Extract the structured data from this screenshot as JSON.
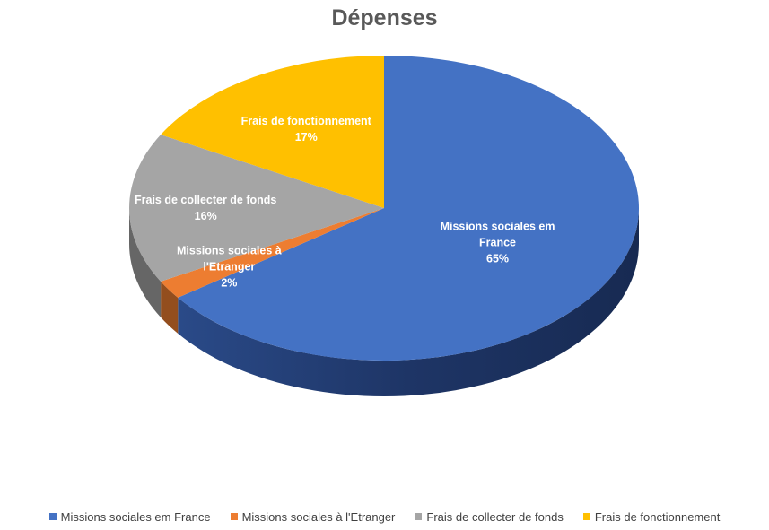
{
  "colors": {
    "Missions sociales em France": "#4472c4",
    "Missions sociales à l'Etranger": "#ed7d31",
    "Frais de collecter de fonds": "#a5a5a5",
    "Frais de fonctionnement": "#ffc000"
  },
  "chart_data": {
    "type": "pie",
    "title": "Dépenses",
    "categories": [
      "Missions sociales em France",
      "Missions sociales à l'Etranger",
      "Frais de collecter de fonds",
      "Frais de fonctionnement"
    ],
    "values": [
      65,
      2,
      16,
      17
    ],
    "data_labels": [
      {
        "lines": [
          "Missions sociales em",
          "France",
          "65%"
        ]
      },
      {
        "lines": [
          "Missions sociales à",
          "l'Etranger",
          "2%"
        ]
      },
      {
        "lines": [
          "Frais de collecter de fonds",
          "16%"
        ]
      },
      {
        "lines": [
          "Frais de fonctionnement",
          "17%"
        ]
      }
    ],
    "style": "3d",
    "legend_position": "bottom"
  }
}
